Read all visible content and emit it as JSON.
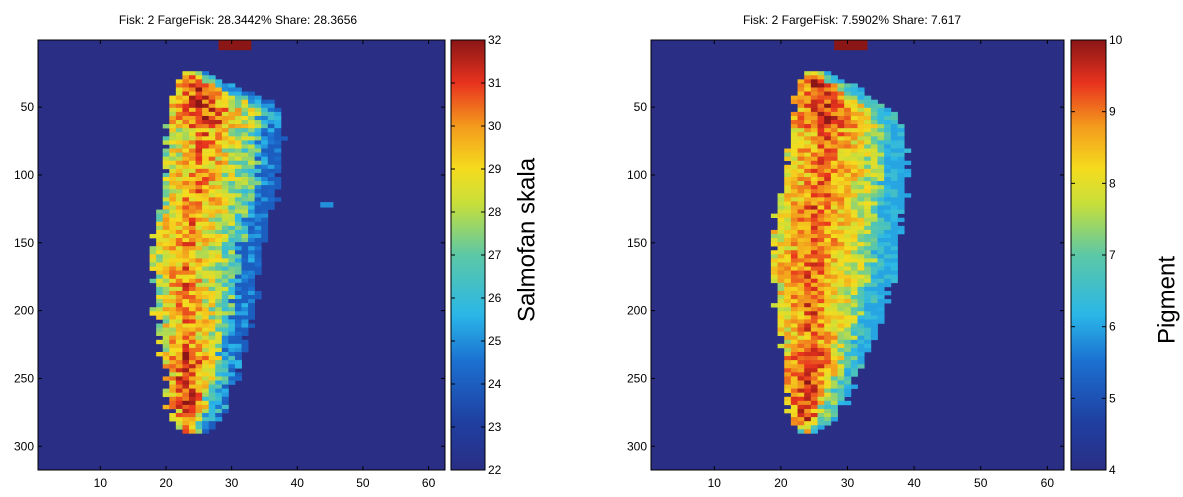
{
  "chart_data": [
    {
      "type": "heatmap",
      "title": "Fisk: 2 FargeFisk: 28.3442%  Share: 28.3656",
      "x_ticks": [
        10,
        20,
        30,
        40,
        50,
        60
      ],
      "y_ticks": [
        50,
        100,
        150,
        200,
        250,
        300
      ],
      "xlim": [
        0.5,
        62.5
      ],
      "ylim": [
        0.5,
        317.5
      ],
      "y_reversed": true,
      "colorbar": {
        "label": "Salmofan skala",
        "range": [
          22,
          32
        ],
        "ticks": [
          22,
          23,
          24,
          25,
          26,
          27,
          28,
          29,
          30,
          31,
          32
        ]
      },
      "background_value": 22,
      "colormap": "jet",
      "grid": false,
      "fish_value_range": [
        24,
        32
      ],
      "fish_shape": [
        {
          "y": 25,
          "x_left": 23.5,
          "x_right": 25.5
        },
        {
          "y": 40,
          "x_left": 21.5,
          "x_right": 33
        },
        {
          "y": 50,
          "x_left": 21,
          "x_right": 37
        },
        {
          "y": 70,
          "x_left": 20.5,
          "x_right": 37
        },
        {
          "y": 100,
          "x_left": 20,
          "x_right": 37
        },
        {
          "y": 140,
          "x_left": 19,
          "x_right": 35
        },
        {
          "y": 160,
          "x_left": 18,
          "x_right": 34
        },
        {
          "y": 200,
          "x_left": 19,
          "x_right": 33
        },
        {
          "y": 240,
          "x_left": 20,
          "x_right": 31
        },
        {
          "y": 270,
          "x_left": 21,
          "x_right": 29
        },
        {
          "y": 285,
          "x_left": 22,
          "x_right": 27
        },
        {
          "y": 290,
          "x_left": 22.5,
          "x_right": 26
        }
      ]
    },
    {
      "type": "heatmap",
      "title": "Fisk: 2 FargeFisk: 7.5902%  Share: 7.617",
      "x_ticks": [
        10,
        20,
        30,
        40,
        50,
        60
      ],
      "y_ticks": [
        50,
        100,
        150,
        200,
        250,
        300
      ],
      "xlim": [
        0.5,
        62.5
      ],
      "ylim": [
        0.5,
        317.5
      ],
      "y_reversed": true,
      "colorbar": {
        "label": "Pigment",
        "range": [
          4,
          10
        ],
        "ticks": [
          4,
          5,
          6,
          7,
          8,
          9,
          10
        ]
      },
      "background_value": 4,
      "colormap": "jet",
      "grid": false,
      "fish_value_range": [
        6,
        10
      ],
      "fish_shape": [
        {
          "y": 25,
          "x_left": 24,
          "x_right": 27
        },
        {
          "y": 35,
          "x_left": 23,
          "x_right": 31
        },
        {
          "y": 50,
          "x_left": 22.5,
          "x_right": 36
        },
        {
          "y": 70,
          "x_left": 22,
          "x_right": 38
        },
        {
          "y": 100,
          "x_left": 21,
          "x_right": 38.5
        },
        {
          "y": 140,
          "x_left": 19.5,
          "x_right": 37.5
        },
        {
          "y": 160,
          "x_left": 19,
          "x_right": 37
        },
        {
          "y": 200,
          "x_left": 20,
          "x_right": 35
        },
        {
          "y": 240,
          "x_left": 21,
          "x_right": 32
        },
        {
          "y": 270,
          "x_left": 21.5,
          "x_right": 29
        },
        {
          "y": 285,
          "x_left": 22.5,
          "x_right": 26.5
        },
        {
          "y": 290,
          "x_left": 23,
          "x_right": 25
        }
      ]
    }
  ]
}
